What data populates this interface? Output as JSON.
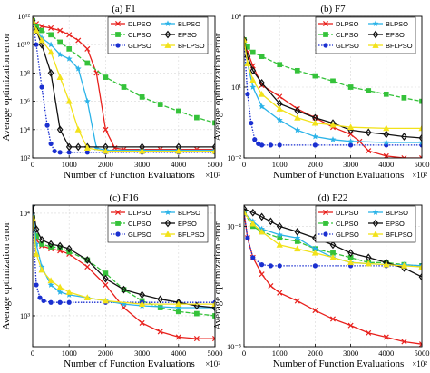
{
  "figure": {
    "ylabel": "Average optimization error",
    "xlabel": "Number of Function Evaluations",
    "x_multiplier": "×10²"
  },
  "legend": [
    {
      "name": "DLPSO",
      "color": "#e8201c",
      "marker": "x",
      "dash": "solid"
    },
    {
      "name": "BLPSO",
      "color": "#2bb3e8",
      "marker": "star",
      "dash": "solid"
    },
    {
      "name": "CLPSO",
      "color": "#35c23a",
      "marker": "square",
      "dash": "dashed"
    },
    {
      "name": "EPSO",
      "color": "#111111",
      "marker": "diamond",
      "dash": "solid"
    },
    {
      "name": "GLPSO",
      "color": "#1a2fd0",
      "marker": "circle",
      "dash": "dotted"
    },
    {
      "name": "BFLPSO",
      "color": "#f2e21a",
      "marker": "triangle",
      "dash": "solid"
    }
  ],
  "chart_data": [
    {
      "type": "line",
      "title": "(a) F1",
      "log_y": true,
      "xlim": [
        0,
        5000
      ],
      "ylim": [
        100.0,
        1000000000000.0
      ],
      "x_ticks": [
        0,
        1000,
        2000,
        3000,
        4000,
        5000
      ],
      "y_ticks": [
        {
          "v": 100.0,
          "l": "10²"
        },
        {
          "v": 10000.0,
          "l": "10⁴"
        },
        {
          "v": 1000000.0,
          "l": "10⁶"
        },
        {
          "v": 100000000.0,
          "l": "10⁸"
        },
        {
          "v": 10000000000.0,
          "l": "10¹⁰"
        },
        {
          "v": 1000000000000.0,
          "l": "10¹²"
        }
      ],
      "series": [
        {
          "name": "DLPSO",
          "x": [
            0,
            100,
            250,
            500,
            750,
            1000,
            1250,
            1500,
            1750,
            2000,
            2250,
            2500,
            3000,
            3500,
            4000,
            4500,
            5000
          ],
          "y": [
            500000000000.0,
            300000000000.0,
            200000000000.0,
            150000000000.0,
            100000000000.0,
            50000000000.0,
            20000000000.0,
            5000000000.0,
            100000000.0,
            10000.0,
            500.0,
            400.0,
            400.0,
            400.0,
            400.0,
            400.0,
            400.0
          ]
        },
        {
          "name": "CLPSO",
          "x": [
            0,
            100,
            250,
            500,
            750,
            1000,
            1500,
            2000,
            2500,
            3000,
            3500,
            4000,
            4500,
            5000
          ],
          "y": [
            500000000000.0,
            200000000000.0,
            100000000000.0,
            50000000000.0,
            15000000000.0,
            5000000000.0,
            500000000.0,
            50000000.0,
            10000000.0,
            2000000.0,
            600000.0,
            200000.0,
            70000.0,
            30000.0
          ]
        },
        {
          "name": "GLPSO",
          "x": [
            0,
            100,
            250,
            400,
            500,
            600,
            750,
            1000,
            1500,
            2000,
            3000,
            4000,
            5000
          ],
          "y": [
            500000000000.0,
            10000000000.0,
            10000000.0,
            20000.0,
            1000.0,
            300.0,
            250.0,
            250.0,
            250.0,
            250.0,
            250.0,
            250.0,
            250.0
          ]
        },
        {
          "name": "BLPSO",
          "x": [
            0,
            100,
            250,
            500,
            750,
            1000,
            1250,
            1500,
            1750,
            2000,
            3000,
            4000,
            5000
          ],
          "y": [
            500000000000.0,
            100000000000.0,
            30000000000.0,
            10000000000.0,
            2000000000.0,
            1000000000.0,
            200000000.0,
            1000000.0,
            500.0,
            350.0,
            350.0,
            350.0,
            350.0
          ]
        },
        {
          "name": "EPSO",
          "x": [
            0,
            100,
            250,
            500,
            750,
            1000,
            1250,
            1500,
            2000,
            3000,
            4000,
            5000
          ],
          "y": [
            500000000000.0,
            100000000000.0,
            10000000000.0,
            100000000.0,
            10000.0,
            600.0,
            600.0,
            600.0,
            600.0,
            600.0,
            600.0,
            600.0
          ]
        },
        {
          "name": "BFLPSO",
          "x": [
            0,
            100,
            250,
            500,
            750,
            1000,
            1250,
            1500,
            2000,
            3000,
            4000,
            5000
          ],
          "y": [
            500000000000.0,
            100000000000.0,
            20000000000.0,
            3000000000.0,
            50000000.0,
            1000000.0,
            10000.0,
            500.0,
            300.0,
            300.0,
            300.0,
            300.0
          ]
        }
      ]
    },
    {
      "type": "line",
      "title": "(b) F7",
      "log_y": true,
      "xlim": [
        0,
        5000
      ],
      "ylim": [
        0.01,
        10000.0
      ],
      "x_ticks": [
        0,
        1000,
        2000,
        3000,
        4000,
        5000
      ],
      "y_ticks": [
        {
          "v": 0.01,
          "l": "10⁻²"
        },
        {
          "v": 10.0,
          "l": "10¹"
        },
        {
          "v": 10000.0,
          "l": "10⁴"
        }
      ],
      "series": [
        {
          "name": "DLPSO",
          "x": [
            0,
            100,
            250,
            500,
            1000,
            1500,
            2000,
            2500,
            3000,
            3250,
            3500,
            4000,
            4500,
            5000
          ],
          "y": [
            1000,
            300,
            80,
            12,
            4,
            1.2,
            0.5,
            0.2,
            0.1,
            0.05,
            0.02,
            0.012,
            0.01,
            0.01
          ]
        },
        {
          "name": "CLPSO",
          "x": [
            0,
            100,
            250,
            500,
            1000,
            1500,
            2000,
            2500,
            3000,
            3500,
            4000,
            4500,
            5000
          ],
          "y": [
            1000,
            500,
            300,
            200,
            90,
            50,
            30,
            18,
            10,
            7,
            5,
            3.5,
            2.5
          ]
        },
        {
          "name": "GLPSO",
          "x": [
            0,
            100,
            200,
            300,
            400,
            500,
            750,
            1000,
            2000,
            3000,
            4000,
            5000
          ],
          "y": [
            1000,
            5,
            0.3,
            0.06,
            0.04,
            0.035,
            0.035,
            0.035,
            0.035,
            0.035,
            0.035,
            0.035
          ]
        },
        {
          "name": "BLPSO",
          "x": [
            0,
            100,
            250,
            500,
            1000,
            1500,
            2000,
            2500,
            3000,
            4000,
            5000
          ],
          "y": [
            1000,
            100,
            10,
            1.5,
            0.4,
            0.15,
            0.08,
            0.06,
            0.05,
            0.045,
            0.045
          ]
        },
        {
          "name": "EPSO",
          "x": [
            0,
            100,
            250,
            500,
            1000,
            1500,
            2000,
            2500,
            3000,
            3500,
            4000,
            4500,
            5000
          ],
          "y": [
            1000,
            200,
            50,
            15,
            2,
            1,
            0.5,
            0.3,
            0.15,
            0.12,
            0.1,
            0.08,
            0.07
          ]
        },
        {
          "name": "BFLPSO",
          "x": [
            0,
            100,
            250,
            500,
            1000,
            1500,
            2000,
            2500,
            3000,
            4000,
            5000
          ],
          "y": [
            1000,
            100,
            20,
            5,
            1.2,
            0.5,
            0.3,
            0.25,
            0.2,
            0.18,
            0.18
          ]
        }
      ]
    },
    {
      "type": "line",
      "title": "(c) F16",
      "log_y": true,
      "xlim": [
        0,
        5000
      ],
      "ylim": [
        500,
        12000
      ],
      "x_ticks": [
        0,
        1000,
        2000,
        3000,
        4000,
        5000
      ],
      "y_ticks": [
        {
          "v": 1000,
          "l": "10³"
        },
        {
          "v": 10000,
          "l": "10⁴"
        }
      ],
      "series": [
        {
          "name": "DLPSO",
          "x": [
            0,
            100,
            250,
            500,
            750,
            1000,
            1500,
            2000,
            2500,
            3000,
            3500,
            4000,
            4500,
            5000
          ],
          "y": [
            9000,
            5500,
            4800,
            4500,
            4300,
            4000,
            3000,
            2000,
            1200,
            850,
            700,
            620,
            600,
            600
          ]
        },
        {
          "name": "CLPSO",
          "x": [
            0,
            100,
            250,
            500,
            750,
            1000,
            1500,
            2000,
            2500,
            3000,
            3500,
            4000,
            4500,
            5000
          ],
          "y": [
            9000,
            6000,
            5000,
            4700,
            4600,
            4200,
            3500,
            2600,
            1800,
            1400,
            1200,
            1100,
            1050,
            1000
          ]
        },
        {
          "name": "GLPSO",
          "x": [
            0,
            100,
            200,
            300,
            500,
            750,
            1000,
            2000,
            3000,
            4000,
            5000
          ],
          "y": [
            9000,
            2000,
            1500,
            1400,
            1350,
            1350,
            1350,
            1350,
            1350,
            1350,
            1350
          ]
        },
        {
          "name": "BLPSO",
          "x": [
            0,
            100,
            250,
            500,
            750,
            1000,
            1500,
            2000,
            2500,
            3000,
            4000,
            5000
          ],
          "y": [
            12000,
            5000,
            3000,
            2000,
            1700,
            1600,
            1500,
            1400,
            1300,
            1250,
            1200,
            1200
          ]
        },
        {
          "name": "EPSO",
          "x": [
            0,
            100,
            250,
            500,
            750,
            1000,
            1500,
            2000,
            2500,
            3000,
            3500,
            4000,
            4500,
            5000
          ],
          "y": [
            12000,
            7000,
            5500,
            5000,
            4800,
            4500,
            3500,
            2300,
            1800,
            1600,
            1450,
            1350,
            1250,
            1200
          ]
        },
        {
          "name": "BFLPSO",
          "x": [
            0,
            100,
            250,
            500,
            750,
            1000,
            1500,
            2000,
            3000,
            4000,
            5000
          ],
          "y": [
            9000,
            4000,
            2800,
            2200,
            1900,
            1700,
            1500,
            1400,
            1300,
            1300,
            1300
          ]
        }
      ]
    },
    {
      "type": "line",
      "title": "(d) F22",
      "log_y": true,
      "xlim": [
        0,
        5000
      ],
      "ylim": [
        1e-05,
        0.00015
      ],
      "x_ticks": [
        0,
        1000,
        2000,
        3000,
        4000,
        5000
      ],
      "y_ticks": [
        {
          "v": 1e-05,
          "l": "10⁻⁵"
        },
        {
          "v": 0.0001,
          "l": "10⁻⁴"
        }
      ],
      "series": [
        {
          "name": "DLPSO",
          "x": [
            0,
            100,
            250,
            500,
            750,
            1000,
            1500,
            2000,
            2500,
            3000,
            3500,
            4000,
            4500,
            5000
          ],
          "y": [
            0.00013,
            8e-05,
            5.5e-05,
            4e-05,
            3.2e-05,
            2.8e-05,
            2.4e-05,
            2e-05,
            1.7e-05,
            1.5e-05,
            1.3e-05,
            1.2e-05,
            1.1e-05,
            1.05e-05
          ]
        },
        {
          "name": "CLPSO",
          "x": [
            0,
            250,
            500,
            1000,
            1500,
            2000,
            2500,
            3000,
            3500,
            4000,
            4500,
            5000
          ],
          "y": [
            0.00013,
            0.0001,
            9e-05,
            8e-05,
            7.5e-05,
            6.5e-05,
            6e-05,
            5.5e-05,
            5e-05,
            5e-05,
            4.8e-05,
            4.7e-05
          ]
        },
        {
          "name": "GLPSO",
          "x": [
            0,
            100,
            250,
            500,
            750,
            1000,
            2000,
            3000,
            4000,
            5000
          ],
          "y": [
            0.00013,
            8e-05,
            5.5e-05,
            4.8e-05,
            4.7e-05,
            4.7e-05,
            4.7e-05,
            4.7e-05,
            4.7e-05,
            4.7e-05
          ]
        },
        {
          "name": "BLPSO",
          "x": [
            0,
            250,
            500,
            1000,
            1500,
            2000,
            2500,
            3000,
            3500,
            4000,
            4500,
            5000
          ],
          "y": [
            0.00013,
            0.00011,
            9.5e-05,
            8.5e-05,
            8e-05,
            6.5e-05,
            5.5e-05,
            5e-05,
            4.9e-05,
            4.8e-05,
            4.8e-05,
            4.7e-05
          ]
        },
        {
          "name": "EPSO",
          "x": [
            0,
            250,
            500,
            750,
            1000,
            1500,
            2000,
            2500,
            3000,
            3500,
            4000,
            4500,
            5000
          ],
          "y": [
            0.00014,
            0.00013,
            0.00012,
            0.00011,
            0.0001,
            9e-05,
            8e-05,
            7e-05,
            6e-05,
            5.5e-05,
            5e-05,
            4.5e-05,
            3.8e-05
          ]
        },
        {
          "name": "BFLPSO",
          "x": [
            0,
            250,
            500,
            1000,
            1500,
            2000,
            2500,
            3000,
            3500,
            4000,
            4500,
            5000
          ],
          "y": [
            0.00013,
            0.000105,
            9e-05,
            7e-05,
            6.5e-05,
            6e-05,
            5.5e-05,
            5e-05,
            4.9e-05,
            4.8e-05,
            4.7e-05,
            4.6e-05
          ]
        }
      ]
    }
  ]
}
